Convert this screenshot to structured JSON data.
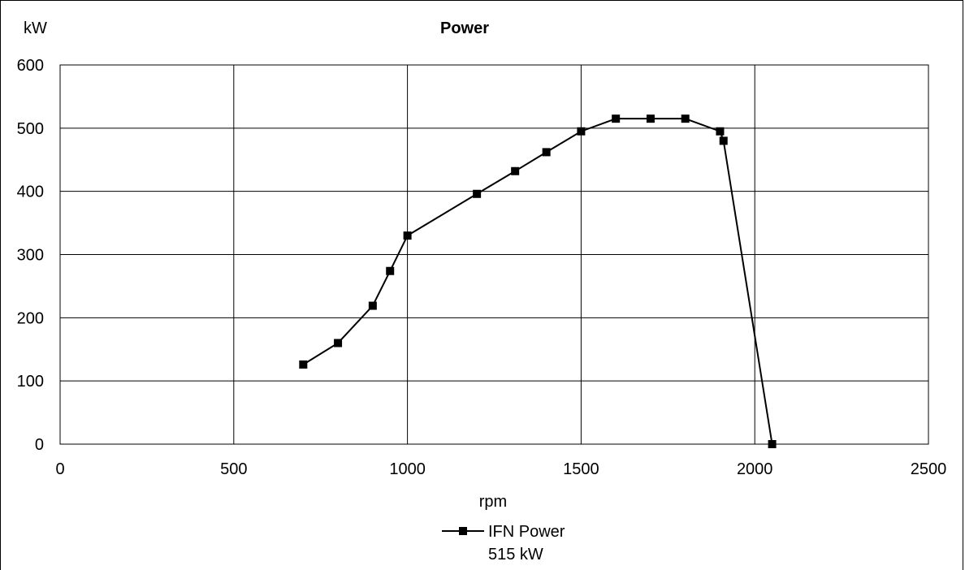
{
  "chart_data": {
    "type": "line",
    "title": "Power",
    "ylabel": "kW",
    "xlabel": "rpm",
    "xlim": [
      0,
      2500
    ],
    "ylim": [
      0,
      600
    ],
    "xticks": [
      0,
      500,
      1000,
      1500,
      2000,
      2500
    ],
    "yticks": [
      0,
      100,
      200,
      300,
      400,
      500,
      600
    ],
    "x_tick_labels": [
      "0",
      "500",
      "1000",
      "1500",
      "2000",
      "2500"
    ],
    "y_tick_labels": [
      "0",
      "100",
      "200",
      "300",
      "400",
      "500",
      "600"
    ],
    "grid": true,
    "legend_position": "bottom-center",
    "series": [
      {
        "name": "IFN Power",
        "legend_subtitle": "515 kW",
        "color": "#000000",
        "marker": "square",
        "x": [
          700,
          800,
          900,
          950,
          1000,
          1200,
          1310,
          1400,
          1500,
          1600,
          1700,
          1800,
          1900,
          1910,
          2050
        ],
        "y": [
          126,
          160,
          219,
          274,
          330,
          396,
          432,
          462,
          495,
          515,
          515,
          515,
          495,
          480,
          0
        ]
      }
    ]
  }
}
